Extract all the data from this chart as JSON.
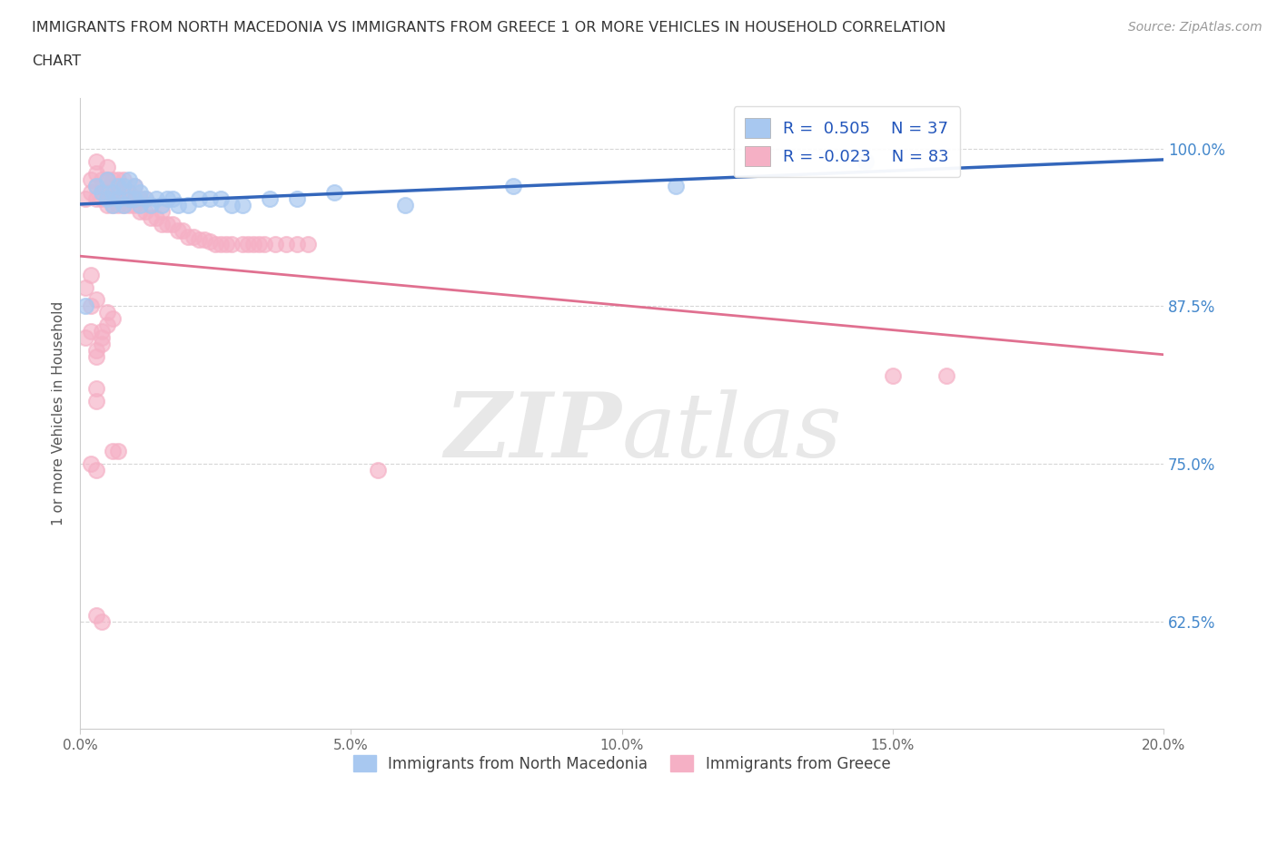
{
  "title_line1": "IMMIGRANTS FROM NORTH MACEDONIA VS IMMIGRANTS FROM GREECE 1 OR MORE VEHICLES IN HOUSEHOLD CORRELATION",
  "title_line2": "CHART",
  "source_text": "Source: ZipAtlas.com",
  "ylabel": "1 or more Vehicles in Household",
  "xlim": [
    0.0,
    0.2
  ],
  "ylim": [
    0.54,
    1.04
  ],
  "yticks": [
    0.625,
    0.75,
    0.875,
    1.0
  ],
  "ytick_labels": [
    "62.5%",
    "75.0%",
    "87.5%",
    "100.0%"
  ],
  "xticks": [
    0.0,
    0.05,
    0.1,
    0.15,
    0.2
  ],
  "xtick_labels": [
    "0.0%",
    "5.0%",
    "10.0%",
    "15.0%",
    "20.0%"
  ],
  "R_blue": 0.505,
  "N_blue": 37,
  "R_pink": -0.023,
  "N_pink": 83,
  "blue_color": "#A8C8F0",
  "pink_color": "#F5B0C5",
  "blue_line_color": "#3366BB",
  "pink_line_color": "#E07090",
  "watermark_zip": "ZIP",
  "watermark_atlas": "atlas",
  "legend_label_blue": "Immigrants from North Macedonia",
  "legend_label_pink": "Immigrants from Greece",
  "blue_x": [
    0.001,
    0.003,
    0.004,
    0.005,
    0.005,
    0.006,
    0.006,
    0.007,
    0.007,
    0.008,
    0.008,
    0.009,
    0.009,
    0.01,
    0.01,
    0.011,
    0.011,
    0.012,
    0.013,
    0.014,
    0.015,
    0.016,
    0.017,
    0.018,
    0.02,
    0.022,
    0.024,
    0.026,
    0.028,
    0.03,
    0.035,
    0.04,
    0.047,
    0.06,
    0.08,
    0.11,
    0.145
  ],
  "blue_y": [
    0.875,
    0.97,
    0.965,
    0.96,
    0.975,
    0.955,
    0.965,
    0.96,
    0.97,
    0.955,
    0.97,
    0.96,
    0.975,
    0.96,
    0.97,
    0.955,
    0.965,
    0.96,
    0.955,
    0.96,
    0.955,
    0.96,
    0.96,
    0.955,
    0.955,
    0.96,
    0.96,
    0.96,
    0.955,
    0.955,
    0.96,
    0.96,
    0.965,
    0.955,
    0.97,
    0.97,
    0.99
  ],
  "pink_x": [
    0.001,
    0.002,
    0.002,
    0.003,
    0.003,
    0.003,
    0.003,
    0.004,
    0.004,
    0.004,
    0.005,
    0.005,
    0.005,
    0.005,
    0.006,
    0.006,
    0.006,
    0.007,
    0.007,
    0.007,
    0.008,
    0.008,
    0.008,
    0.009,
    0.009,
    0.01,
    0.01,
    0.01,
    0.011,
    0.011,
    0.012,
    0.012,
    0.013,
    0.014,
    0.015,
    0.015,
    0.016,
    0.017,
    0.018,
    0.019,
    0.02,
    0.021,
    0.022,
    0.023,
    0.024,
    0.025,
    0.026,
    0.027,
    0.028,
    0.03,
    0.031,
    0.032,
    0.033,
    0.034,
    0.036,
    0.038,
    0.04,
    0.042,
    0.001,
    0.002,
    0.003,
    0.004,
    0.005,
    0.002,
    0.003,
    0.004,
    0.005,
    0.006,
    0.003,
    0.004,
    0.001,
    0.002,
    0.003,
    0.003,
    0.006,
    0.007,
    0.002,
    0.003,
    0.003,
    0.004,
    0.15,
    0.16,
    0.055
  ],
  "pink_y": [
    0.96,
    0.965,
    0.975,
    0.96,
    0.97,
    0.98,
    0.99,
    0.96,
    0.965,
    0.975,
    0.955,
    0.965,
    0.975,
    0.985,
    0.955,
    0.965,
    0.975,
    0.955,
    0.965,
    0.975,
    0.955,
    0.965,
    0.975,
    0.955,
    0.965,
    0.955,
    0.96,
    0.97,
    0.95,
    0.96,
    0.95,
    0.96,
    0.945,
    0.945,
    0.94,
    0.95,
    0.94,
    0.94,
    0.935,
    0.935,
    0.93,
    0.93,
    0.928,
    0.928,
    0.926,
    0.924,
    0.924,
    0.924,
    0.924,
    0.924,
    0.924,
    0.924,
    0.924,
    0.924,
    0.924,
    0.924,
    0.924,
    0.924,
    0.89,
    0.9,
    0.84,
    0.85,
    0.86,
    0.875,
    0.88,
    0.855,
    0.87,
    0.865,
    0.835,
    0.845,
    0.85,
    0.855,
    0.8,
    0.81,
    0.76,
    0.76,
    0.75,
    0.745,
    0.63,
    0.625,
    0.82,
    0.82,
    0.745
  ]
}
